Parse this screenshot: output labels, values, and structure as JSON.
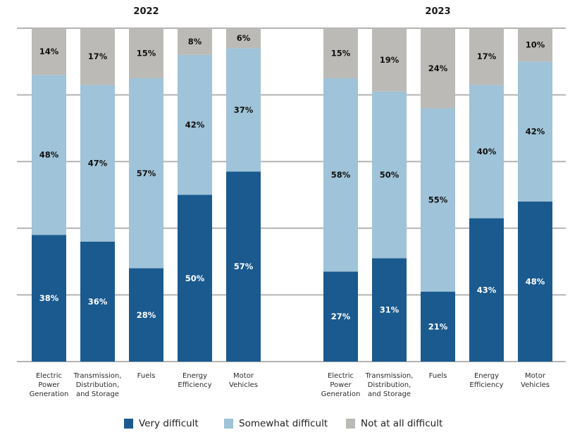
{
  "chart_data": {
    "type": "bar",
    "stacked": true,
    "title": "",
    "xlabel": "",
    "ylabel": "",
    "ylim": [
      0,
      100
    ],
    "grid": true,
    "y_gridlines": [
      0,
      20,
      40,
      60,
      80,
      100
    ],
    "legend_position": "bottom",
    "categories": [
      [
        "Electric",
        "Power",
        "Generation"
      ],
      [
        "Transmission,",
        "Distribution,",
        "and Storage"
      ],
      [
        "Fuels"
      ],
      [
        "Energy",
        "Efficiency"
      ],
      [
        "Motor",
        "Vehicles"
      ]
    ],
    "series_meta": [
      {
        "name": "Very difficult",
        "color": "#1a5a8f",
        "label_color": "#ffffff"
      },
      {
        "name": "Somewhat difficult",
        "color": "#9fc3d8",
        "label_color": "#111111"
      },
      {
        "name": "Not at all difficult",
        "color": "#bcbab6",
        "label_color": "#111111"
      }
    ],
    "panels": [
      {
        "title": "2022",
        "series": [
          {
            "name": "Very difficult",
            "values": [
              38,
              36,
              28,
              50,
              57
            ]
          },
          {
            "name": "Somewhat difficult",
            "values": [
              48,
              47,
              57,
              42,
              37
            ]
          },
          {
            "name": "Not at all difficult",
            "values": [
              14,
              17,
              15,
              8,
              6
            ]
          }
        ]
      },
      {
        "title": "2023",
        "series": [
          {
            "name": "Very difficult",
            "values": [
              27,
              31,
              21,
              43,
              48
            ]
          },
          {
            "name": "Somewhat difficult",
            "values": [
              58,
              50,
              55,
              40,
              42
            ]
          },
          {
            "name": "Not at all difficult",
            "values": [
              15,
              19,
              24,
              17,
              10
            ]
          }
        ]
      }
    ],
    "value_suffix": "%"
  },
  "legend": [
    {
      "label": "Very difficult",
      "color": "#1a5a8f"
    },
    {
      "label": "Somewhat difficult",
      "color": "#9fc3d8"
    },
    {
      "label": "Not at all difficult",
      "color": "#bcbab6"
    }
  ]
}
